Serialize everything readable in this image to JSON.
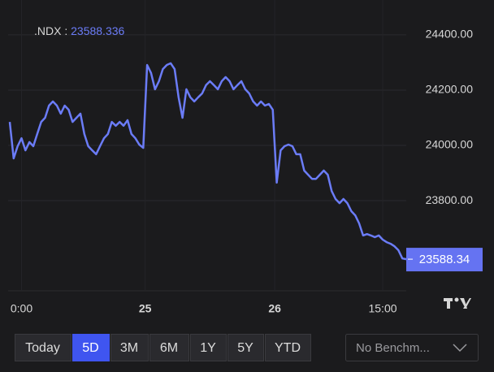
{
  "chart_data": {
    "type": "line",
    "symbol_label": ".NDX :",
    "last_value": 23588.336,
    "last_value_label": "23588.34",
    "color": "#6b7cf7",
    "values": [
      24085,
      23953,
      23997,
      24026,
      23982,
      24012,
      23997,
      24041,
      24085,
      24100,
      24144,
      24159,
      24144,
      24115,
      24144,
      24129,
      24085,
      24100,
      24115,
      24041,
      23997,
      23982,
      23968,
      23997,
      24026,
      24041,
      24085,
      24071,
      24085,
      24071,
      24091,
      24041,
      24026,
      24003,
      23991,
      24291,
      24262,
      24203,
      24232,
      24276,
      24291,
      24297,
      24276,
      24174,
      24100,
      24203,
      24174,
      24159,
      24174,
      24188,
      24218,
      24232,
      24218,
      24203,
      24232,
      24247,
      24232,
      24203,
      24218,
      24232,
      24203,
      24188,
      24159,
      24144,
      24159,
      24144,
      24150,
      24129,
      23865,
      23982,
      23997,
      24003,
      23997,
      23968,
      23968,
      23909,
      23894,
      23879,
      23879,
      23894,
      23909,
      23894,
      23835,
      23806,
      23791,
      23806,
      23791,
      23762,
      23747,
      23718,
      23674,
      23679,
      23674,
      23668,
      23674,
      23659,
      23650,
      23644,
      23635,
      23621,
      23591,
      23588.336
    ],
    "xlim": [
      0,
      101
    ],
    "xticks": [
      {
        "value": 3,
        "label": "0:00"
      },
      {
        "value": 34.5,
        "label": "25"
      },
      {
        "value": 67.5,
        "label": "26"
      },
      {
        "value": 95,
        "label": "15:00"
      }
    ],
    "ylim": [
      23474,
      24526
    ],
    "yticks": [
      {
        "value": 23800,
        "label": "23800.00"
      },
      {
        "value": 24000,
        "label": "24000.00"
      },
      {
        "value": 24200,
        "label": "24200.00"
      },
      {
        "value": 24400,
        "label": "24400.00"
      }
    ],
    "grid": true,
    "ranges": [
      "Today",
      "5D",
      "3M",
      "6M",
      "1Y",
      "5Y",
      "YTD"
    ],
    "selected_range": "5D",
    "benchmark": "No Benchm..."
  }
}
